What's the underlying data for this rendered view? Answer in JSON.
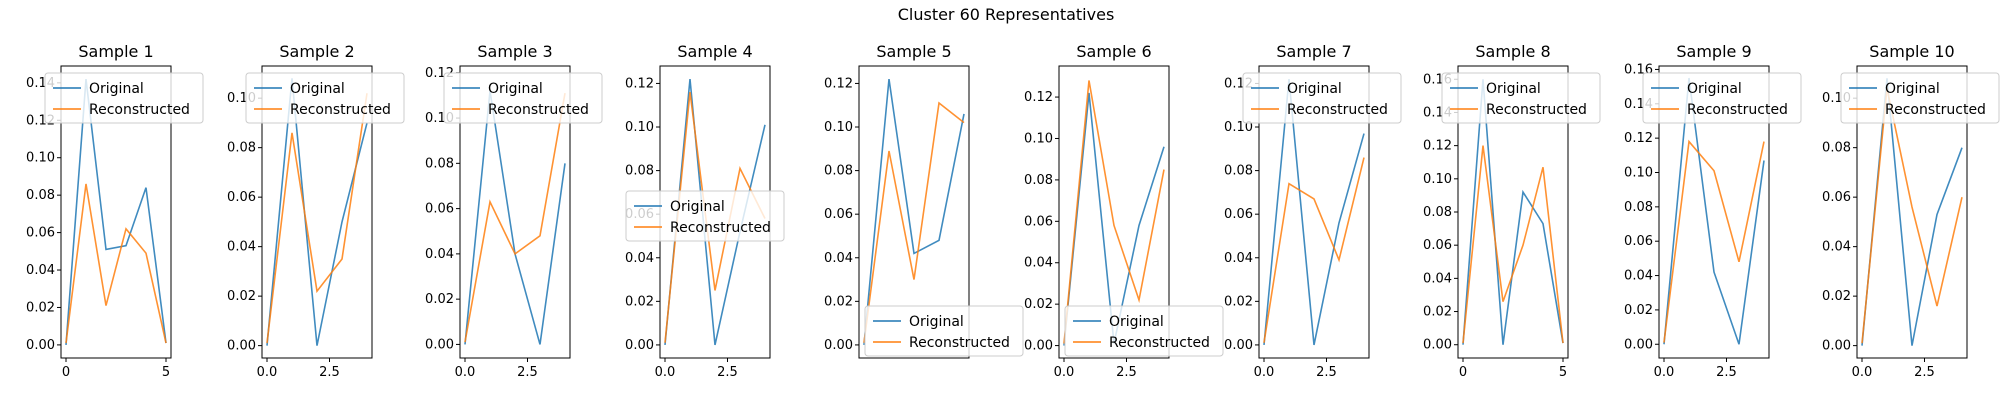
{
  "figure": {
    "title": "Cluster 60 Representatives"
  },
  "colors": {
    "original": "#1f77b4",
    "reconstructed": "#ff7f0e"
  },
  "chart_data": [
    {
      "type": "line",
      "title": "Sample 1",
      "x": [
        0,
        1,
        2,
        3,
        4,
        5
      ],
      "xticks": [
        0,
        5
      ],
      "xtick_labels": [
        "0",
        "5"
      ],
      "xlim": [
        -0.25,
        5.25
      ],
      "yticks": [
        0,
        0.02,
        0.04,
        0.06,
        0.08,
        0.1,
        0.12,
        0.14
      ],
      "ytick_labels": [
        "0.00",
        "0.02",
        "0.04",
        "0.06",
        "0.08",
        "0.10",
        "0.12",
        "0.14"
      ],
      "ylim": [
        -0.007,
        0.149
      ],
      "legend": "upper left",
      "series": [
        {
          "name": "Original",
          "values": [
            0.0,
            0.142,
            0.051,
            0.053,
            0.084,
            0.001
          ]
        },
        {
          "name": "Reconstructed",
          "values": [
            0.001,
            0.086,
            0.021,
            0.062,
            0.049,
            0.001
          ]
        }
      ]
    },
    {
      "type": "line",
      "title": "Sample 2",
      "x": [
        0,
        1,
        2,
        3,
        4
      ],
      "xticks": [
        0,
        2.5
      ],
      "xtick_labels": [
        "0.0",
        "2.5"
      ],
      "xlim": [
        -0.2,
        4.2
      ],
      "yticks": [
        0,
        0.02,
        0.04,
        0.06,
        0.08,
        0.1
      ],
      "ytick_labels": [
        "0.00",
        "0.02",
        "0.04",
        "0.06",
        "0.08",
        "0.10"
      ],
      "ylim": [
        -0.005,
        0.113
      ],
      "legend": "upper left",
      "series": [
        {
          "name": "Original",
          "values": [
            0.0,
            0.108,
            0.0,
            0.05,
            0.09
          ]
        },
        {
          "name": "Reconstructed",
          "values": [
            0.001,
            0.086,
            0.022,
            0.035,
            0.102
          ]
        }
      ]
    },
    {
      "type": "line",
      "title": "Sample 3",
      "x": [
        0,
        1,
        2,
        3,
        4
      ],
      "xticks": [
        0,
        2.5
      ],
      "xtick_labels": [
        "0.0",
        "2.5"
      ],
      "xlim": [
        -0.2,
        4.2
      ],
      "yticks": [
        0,
        0.02,
        0.04,
        0.06,
        0.08,
        0.1,
        0.12
      ],
      "ytick_labels": [
        "0.00",
        "0.02",
        "0.04",
        "0.06",
        "0.08",
        "0.10",
        "0.12"
      ],
      "ylim": [
        -0.006,
        0.123
      ],
      "legend": "upper left",
      "series": [
        {
          "name": "Original",
          "values": [
            0.0,
            0.112,
            0.04,
            0.0,
            0.08
          ]
        },
        {
          "name": "Reconstructed",
          "values": [
            0.001,
            0.063,
            0.04,
            0.048,
            0.111
          ]
        }
      ]
    },
    {
      "type": "line",
      "title": "Sample 4",
      "x": [
        0,
        1,
        2,
        3,
        4
      ],
      "xticks": [
        0,
        2.5
      ],
      "xtick_labels": [
        "0.0",
        "2.5"
      ],
      "xlim": [
        -0.2,
        4.2
      ],
      "yticks": [
        0,
        0.02,
        0.04,
        0.06,
        0.08,
        0.1,
        0.12
      ],
      "ytick_labels": [
        "0.00",
        "0.02",
        "0.04",
        "0.06",
        "0.08",
        "0.10",
        "0.12"
      ],
      "ylim": [
        -0.006,
        0.128
      ],
      "legend": "center left",
      "series": [
        {
          "name": "Original",
          "values": [
            0.0,
            0.122,
            0.0,
            0.052,
            0.101
          ]
        },
        {
          "name": "Reconstructed",
          "values": [
            0.001,
            0.116,
            0.025,
            0.081,
            0.058
          ]
        }
      ]
    },
    {
      "type": "line",
      "title": "Sample 5",
      "x": [
        0,
        1,
        2,
        3,
        4
      ],
      "xticks": [],
      "xtick_labels": [],
      "xlim": [
        -0.2,
        4.2
      ],
      "yticks": [
        0,
        0.02,
        0.04,
        0.06,
        0.08,
        0.1,
        0.12
      ],
      "ytick_labels": [
        "0.00",
        "0.02",
        "0.04",
        "0.06",
        "0.08",
        "0.10",
        "0.12"
      ],
      "ylim": [
        -0.006,
        0.128
      ],
      "legend": "lower left",
      "series": [
        {
          "name": "Original",
          "values": [
            0.0,
            0.122,
            0.042,
            0.048,
            0.106
          ]
        },
        {
          "name": "Reconstructed",
          "values": [
            0.001,
            0.089,
            0.03,
            0.111,
            0.102
          ]
        }
      ]
    },
    {
      "type": "line",
      "title": "Sample 6",
      "x": [
        0,
        1,
        2,
        3,
        4
      ],
      "xticks": [
        0,
        2.5
      ],
      "xtick_labels": [
        "0.0",
        "2.5"
      ],
      "xlim": [
        -0.2,
        4.2
      ],
      "yticks": [
        0,
        0.02,
        0.04,
        0.06,
        0.08,
        0.1,
        0.12
      ],
      "ytick_labels": [
        "0.00",
        "0.02",
        "0.04",
        "0.06",
        "0.08",
        "0.10",
        "0.12"
      ],
      "ylim": [
        -0.006,
        0.135
      ],
      "legend": "lower left",
      "series": [
        {
          "name": "Original",
          "values": [
            0.0,
            0.122,
            0.001,
            0.058,
            0.096
          ]
        },
        {
          "name": "Reconstructed",
          "values": [
            0.001,
            0.128,
            0.058,
            0.022,
            0.085
          ]
        }
      ]
    },
    {
      "type": "line",
      "title": "Sample 7",
      "x": [
        0,
        1,
        2,
        3,
        4
      ],
      "xticks": [
        0,
        2.5
      ],
      "xtick_labels": [
        "0.0",
        "2.5"
      ],
      "xlim": [
        -0.2,
        4.2
      ],
      "yticks": [
        0,
        0.02,
        0.04,
        0.06,
        0.08,
        0.1,
        0.12
      ],
      "ytick_labels": [
        "0.00",
        "0.02",
        "0.04",
        "0.06",
        "0.08",
        "0.10",
        "0.12"
      ],
      "ylim": [
        -0.006,
        0.128
      ],
      "legend": "upper left",
      "series": [
        {
          "name": "Original",
          "values": [
            0.0,
            0.122,
            0.0,
            0.056,
            0.097
          ]
        },
        {
          "name": "Reconstructed",
          "values": [
            0.001,
            0.074,
            0.067,
            0.039,
            0.086
          ]
        }
      ]
    },
    {
      "type": "line",
      "title": "Sample 8",
      "x": [
        0,
        1,
        2,
        3,
        4,
        5
      ],
      "xticks": [
        0,
        5
      ],
      "xtick_labels": [
        "0",
        "5"
      ],
      "xlim": [
        -0.25,
        5.25
      ],
      "yticks": [
        0,
        0.02,
        0.04,
        0.06,
        0.08,
        0.1,
        0.12,
        0.14,
        0.16
      ],
      "ytick_labels": [
        "0.00",
        "0.02",
        "0.04",
        "0.06",
        "0.08",
        "0.10",
        "0.12",
        "0.14",
        "0.16"
      ],
      "ylim": [
        -0.008,
        0.168
      ],
      "legend": "upper left",
      "series": [
        {
          "name": "Original",
          "values": [
            0.0,
            0.16,
            0.0,
            0.092,
            0.073,
            0.001
          ]
        },
        {
          "name": "Reconstructed",
          "values": [
            0.001,
            0.12,
            0.026,
            0.06,
            0.107,
            0.001
          ]
        }
      ]
    },
    {
      "type": "line",
      "title": "Sample 9",
      "x": [
        0,
        1,
        2,
        3,
        4
      ],
      "xticks": [
        0,
        2.5
      ],
      "xtick_labels": [
        "0.0",
        "2.5"
      ],
      "xlim": [
        -0.2,
        4.2
      ],
      "yticks": [
        0,
        0.02,
        0.04,
        0.06,
        0.08,
        0.1,
        0.12,
        0.14,
        0.16
      ],
      "ytick_labels": [
        "0.00",
        "0.02",
        "0.04",
        "0.06",
        "0.08",
        "0.10",
        "0.12",
        "0.14",
        "0.16"
      ],
      "ylim": [
        -0.008,
        0.162
      ],
      "legend": "upper left",
      "series": [
        {
          "name": "Original",
          "values": [
            0.0,
            0.155,
            0.042,
            0.0,
            0.107
          ]
        },
        {
          "name": "Reconstructed",
          "values": [
            0.001,
            0.118,
            0.101,
            0.048,
            0.118
          ]
        }
      ]
    },
    {
      "type": "line",
      "title": "Sample 10",
      "x": [
        0,
        1,
        2,
        3,
        4
      ],
      "xticks": [
        0,
        2.5
      ],
      "xtick_labels": [
        "0.0",
        "2.5"
      ],
      "xlim": [
        -0.2,
        4.2
      ],
      "yticks": [
        0,
        0.02,
        0.04,
        0.06,
        0.08,
        0.1
      ],
      "ytick_labels": [
        "0.00",
        "0.02",
        "0.04",
        "0.06",
        "0.08",
        "0.10"
      ],
      "ylim": [
        -0.005,
        0.113
      ],
      "legend": "upper left",
      "series": [
        {
          "name": "Original",
          "values": [
            0.0,
            0.108,
            0.0,
            0.053,
            0.08
          ]
        },
        {
          "name": "Reconstructed",
          "values": [
            0.001,
            0.104,
            0.056,
            0.016,
            0.06
          ]
        }
      ]
    }
  ]
}
